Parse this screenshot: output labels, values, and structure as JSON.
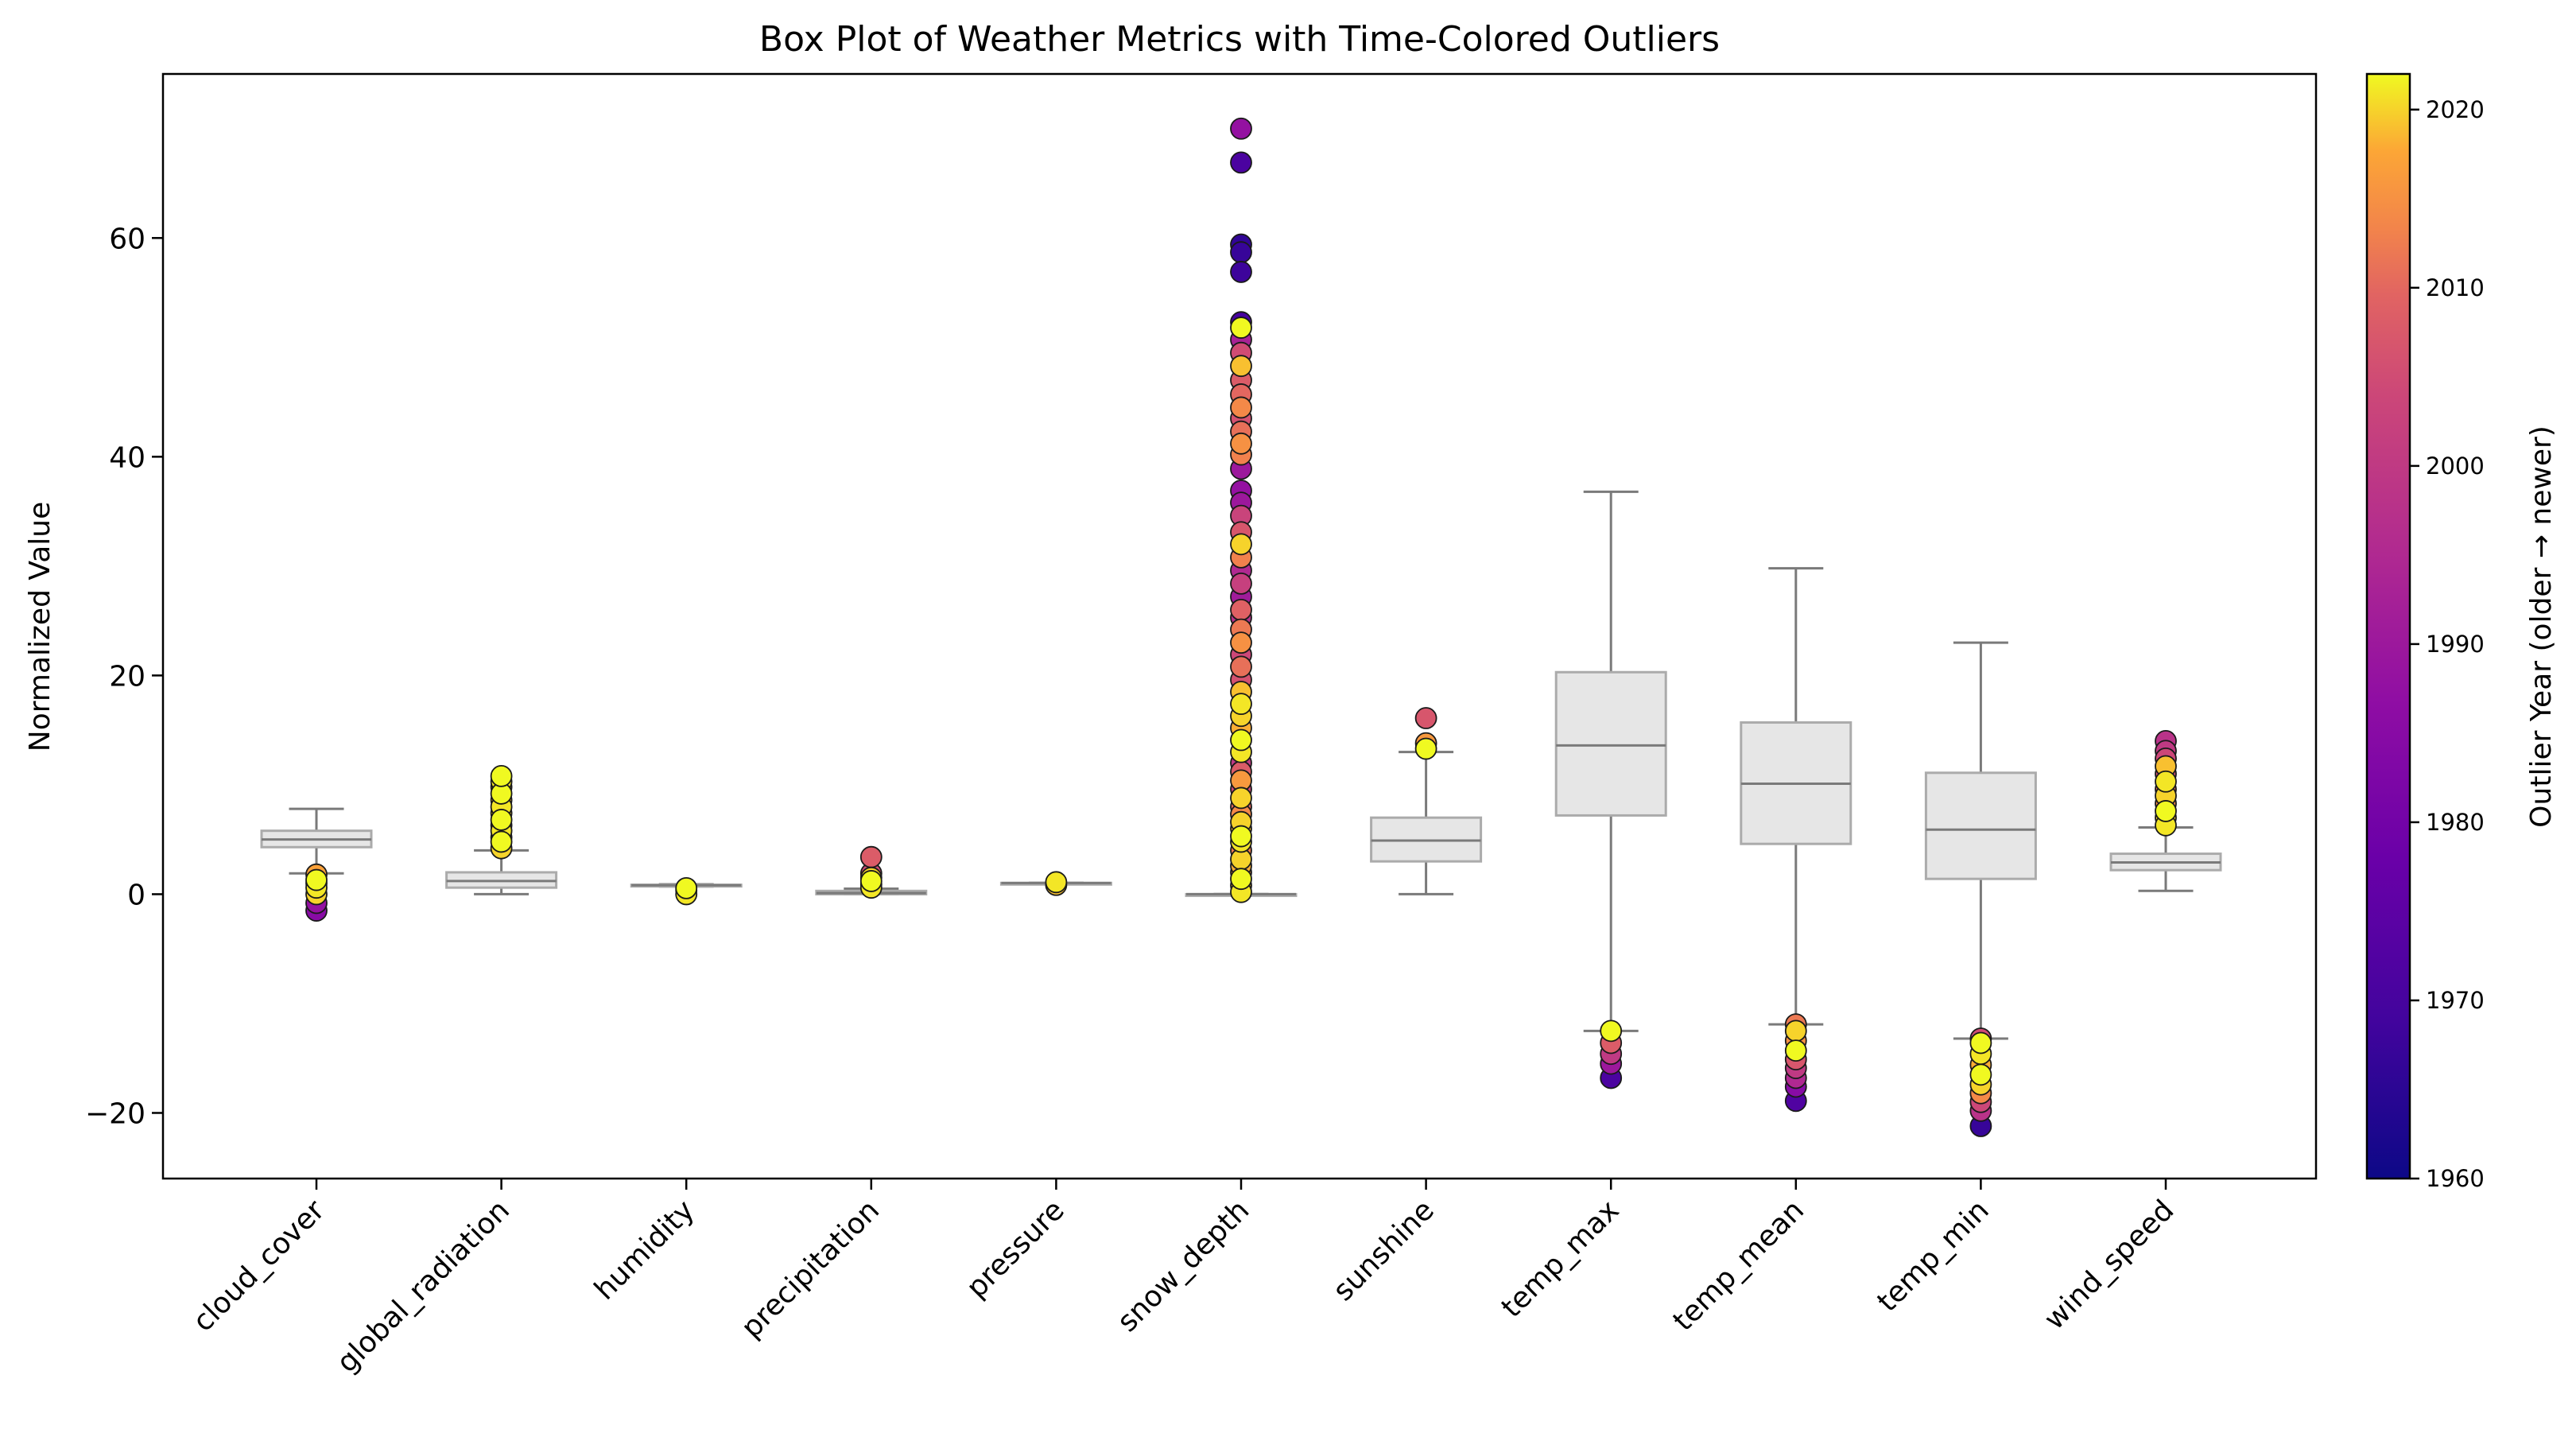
{
  "chart_data": {
    "type": "box",
    "title": "Box Plot of Weather Metrics with Time-Colored Outliers",
    "xlabel": "",
    "ylabel": "Normalized Value",
    "ylim": [
      -26,
      75
    ],
    "yticks": [
      -20,
      0,
      20,
      40,
      60
    ],
    "ytick_labels": [
      "−20",
      "0",
      "20",
      "40",
      "60"
    ],
    "grid": false,
    "colorbar": {
      "label": "Outlier Year (older → newer)",
      "range": [
        1960,
        2022
      ],
      "ticks": [
        1960,
        1970,
        1980,
        1990,
        2000,
        2010,
        2020
      ],
      "tick_labels": [
        "1960",
        "1970",
        "1980",
        "1990",
        "2000",
        "2010",
        "2020"
      ],
      "colormap": "plasma"
    },
    "categories": [
      "cloud_cover",
      "global_radiation",
      "humidity",
      "precipitation",
      "pressure",
      "snow_depth",
      "sunshine",
      "temp_max",
      "temp_mean",
      "temp_min",
      "wind_speed"
    ],
    "boxes": [
      {
        "whisker_low": 1.9,
        "q1": 4.3,
        "median": 5.0,
        "q3": 5.8,
        "whisker_high": 7.8
      },
      {
        "whisker_low": 0.0,
        "q1": 0.6,
        "median": 1.2,
        "q3": 2.0,
        "whisker_high": 4.0
      },
      {
        "whisker_low": 0.7,
        "q1": 0.78,
        "median": 0.82,
        "q3": 0.86,
        "whisker_high": 0.9
      },
      {
        "whisker_low": 0.0,
        "q1": 0.0,
        "median": 0.1,
        "q3": 0.3,
        "whisker_high": 0.5
      },
      {
        "whisker_low": 1.0,
        "q1": 1.01,
        "median": 1.02,
        "q3": 1.03,
        "whisker_high": 1.04
      },
      {
        "whisker_low": 0.0,
        "q1": 0.0,
        "median": 0.0,
        "q3": 0.0,
        "whisker_high": 0.0
      },
      {
        "whisker_low": 0.0,
        "q1": 3.0,
        "median": 4.9,
        "q3": 7.0,
        "whisker_high": 13.0
      },
      {
        "whisker_low": -12.5,
        "q1": 7.2,
        "median": 13.6,
        "q3": 20.3,
        "whisker_high": 36.8
      },
      {
        "whisker_low": -11.9,
        "q1": 4.6,
        "median": 10.1,
        "q3": 15.7,
        "whisker_high": 29.8
      },
      {
        "whisker_low": -13.2,
        "q1": 1.4,
        "median": 5.9,
        "q3": 11.1,
        "whisker_high": 23.0
      },
      {
        "whisker_low": 0.3,
        "q1": 2.2,
        "median": 2.9,
        "q3": 3.7,
        "whisker_high": 6.1
      }
    ],
    "outliers": [
      {
        "category": "cloud_cover",
        "points": [
          [
            -1.5,
            1985
          ],
          [
            -0.8,
            1988
          ],
          [
            0.0,
            2020
          ],
          [
            0.6,
            2021
          ],
          [
            1.0,
            2018
          ],
          [
            1.3,
            2022
          ],
          [
            1.8,
            2017
          ]
        ]
      },
      {
        "category": "global_radiation",
        "points": [
          [
            4.2,
            2020
          ],
          [
            4.8,
            2022
          ],
          [
            5.2,
            2019
          ],
          [
            5.8,
            2021
          ],
          [
            6.3,
            2018
          ],
          [
            6.8,
            2022
          ],
          [
            7.4,
            2020
          ],
          [
            8.0,
            2021
          ],
          [
            8.6,
            2019
          ],
          [
            9.2,
            2022
          ],
          [
            9.8,
            2020
          ],
          [
            10.3,
            2021
          ],
          [
            10.8,
            2022
          ]
        ]
      },
      {
        "category": "humidity",
        "points": [
          [
            0.0,
            2021
          ],
          [
            0.35,
            2020
          ],
          [
            0.55,
            2022
          ]
        ]
      },
      {
        "category": "precipitation",
        "points": [
          [
            0.6,
            2021
          ],
          [
            0.9,
            2019
          ],
          [
            1.2,
            2022
          ],
          [
            1.5,
            2020
          ],
          [
            1.9,
            2005
          ],
          [
            3.4,
            2008
          ]
        ]
      },
      {
        "category": "pressure",
        "points": [
          [
            0.85,
            2019
          ],
          [
            1.1,
            2021
          ]
        ]
      },
      {
        "category": "snow_depth",
        "points": [
          [
            0.2,
            2021
          ],
          [
            0.8,
            2019
          ],
          [
            1.4,
            2022
          ],
          [
            2.0,
            2015
          ],
          [
            2.6,
            2018
          ],
          [
            3.2,
            2020
          ],
          [
            4.0,
            2012
          ],
          [
            4.8,
            2021
          ],
          [
            5.3,
            2022
          ],
          [
            6.0,
            2019
          ],
          [
            6.6,
            2020
          ],
          [
            7.3,
            2014
          ],
          [
            8.0,
            2010
          ],
          [
            8.8,
            2020
          ],
          [
            9.6,
            2003
          ],
          [
            10.4,
            2016
          ],
          [
            11.2,
            2008
          ],
          [
            12.0,
            2000
          ],
          [
            13.0,
            2021
          ],
          [
            14.1,
            2022
          ],
          [
            15.2,
            2018
          ],
          [
            16.3,
            2020
          ],
          [
            17.4,
            2021
          ],
          [
            18.5,
            2019
          ],
          [
            19.6,
            2006
          ],
          [
            20.8,
            2011
          ],
          [
            21.9,
            2004
          ],
          [
            23.0,
            2015
          ],
          [
            24.2,
            2012
          ],
          [
            25.3,
            1997
          ],
          [
            26.0,
            2009
          ],
          [
            27.2,
            1991
          ],
          [
            28.4,
            2002
          ],
          [
            29.6,
            1995
          ],
          [
            30.8,
            2013
          ],
          [
            32.0,
            2020
          ],
          [
            33.1,
            2007
          ],
          [
            34.6,
            2003
          ],
          [
            35.8,
            1990
          ],
          [
            36.9,
            1988
          ],
          [
            38.9,
            1990
          ],
          [
            40.2,
            2013
          ],
          [
            41.2,
            2015
          ],
          [
            42.3,
            2011
          ],
          [
            43.5,
            2006
          ],
          [
            44.5,
            2014
          ],
          [
            45.7,
            2010
          ],
          [
            47.0,
            2008
          ],
          [
            48.3,
            2019
          ],
          [
            49.5,
            2005
          ],
          [
            50.7,
            1993
          ],
          [
            51.8,
            2022
          ],
          [
            52.3,
            1970
          ],
          [
            56.9,
            1968
          ],
          [
            58.7,
            1967
          ],
          [
            59.4,
            1966
          ],
          [
            66.9,
            1971
          ],
          [
            70.0,
            1988
          ]
        ]
      },
      {
        "category": "sunshine",
        "points": [
          [
            13.3,
            2022
          ],
          [
            13.8,
            2016
          ],
          [
            16.1,
            2007
          ]
        ]
      },
      {
        "category": "temp_max",
        "points": [
          [
            -16.8,
            1971
          ],
          [
            -15.5,
            1990
          ],
          [
            -14.6,
            2000
          ],
          [
            -13.6,
            2008
          ],
          [
            -12.5,
            2022
          ]
        ]
      },
      {
        "category": "temp_mean",
        "points": [
          [
            -18.9,
            1972
          ],
          [
            -17.6,
            1985
          ],
          [
            -16.8,
            1995
          ],
          [
            -15.9,
            2000
          ],
          [
            -15.1,
            2007
          ],
          [
            -14.3,
            2022
          ],
          [
            -13.4,
            2015
          ],
          [
            -12.5,
            2020
          ],
          [
            -11.9,
            2012
          ]
        ]
      },
      {
        "category": "temp_min",
        "points": [
          [
            -21.2,
            1967
          ],
          [
            -19.8,
            1998
          ],
          [
            -19.0,
            2004
          ],
          [
            -18.2,
            2014
          ],
          [
            -17.4,
            2020
          ],
          [
            -16.5,
            2022
          ],
          [
            -15.6,
            2018
          ],
          [
            -14.6,
            2021
          ],
          [
            -13.6,
            2022
          ],
          [
            -13.2,
            2005
          ]
        ]
      },
      {
        "category": "wind_speed",
        "points": [
          [
            6.3,
            2021
          ],
          [
            7.0,
            2020
          ],
          [
            7.6,
            2022
          ],
          [
            8.3,
            2014
          ],
          [
            9.0,
            2020
          ],
          [
            9.6,
            2011
          ],
          [
            10.3,
            2021
          ],
          [
            11.0,
            2006
          ],
          [
            11.7,
            2019
          ],
          [
            12.4,
            2004
          ],
          [
            13.1,
            2000
          ],
          [
            14.0,
            1998
          ]
        ]
      }
    ]
  }
}
